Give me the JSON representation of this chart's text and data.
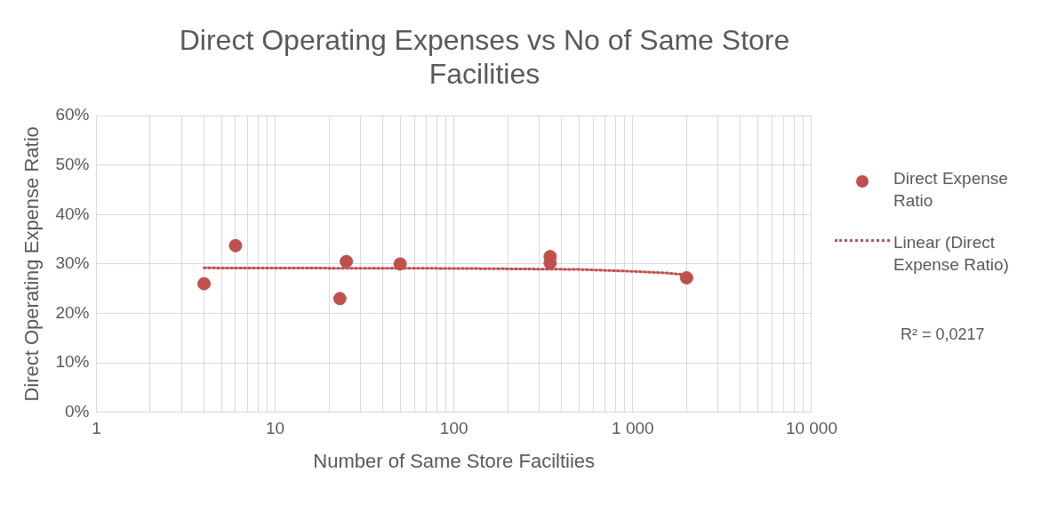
{
  "chart_data": {
    "type": "scatter",
    "title": "Direct Operating Expenses vs No of Same Store Facilities",
    "xlabel": "Number of Same Store Faciltiies",
    "ylabel": "Direct Operating Expense Ratio",
    "log": "x",
    "grid": true,
    "legend": "right",
    "xlim": [
      1,
      10000
    ],
    "xticks": [
      1,
      {
        "value": 2,
        "label": null
      },
      {
        "value": 3,
        "label": null
      },
      {
        "value": 4,
        "label": null
      },
      {
        "value": 5,
        "label": null
      },
      {
        "value": 6,
        "label": null
      },
      {
        "value": 7,
        "label": null
      },
      {
        "value": 8,
        "label": null
      },
      {
        "value": 9,
        "label": null
      },
      10,
      {
        "value": 20,
        "label": null
      },
      {
        "value": 30,
        "label": null
      },
      {
        "value": 40,
        "label": null
      },
      {
        "value": 50,
        "label": null
      },
      {
        "value": 60,
        "label": null
      },
      {
        "value": 70,
        "label": null
      },
      {
        "value": 80,
        "label": null
      },
      {
        "value": 90,
        "label": null
      },
      100,
      {
        "value": 200,
        "label": null
      },
      {
        "value": 300,
        "label": null
      },
      {
        "value": 400,
        "label": null
      },
      {
        "value": 500,
        "label": null
      },
      {
        "value": 600,
        "label": null
      },
      {
        "value": 700,
        "label": null
      },
      {
        "value": 800,
        "label": null
      },
      {
        "value": 900,
        "label": null
      },
      {
        "value": 1000,
        "label": "1 000"
      },
      {
        "value": 2000,
        "label": null
      },
      {
        "value": 3000,
        "label": null
      },
      {
        "value": 4000,
        "label": null
      },
      {
        "value": 5000,
        "label": null
      },
      {
        "value": 6000,
        "label": null
      },
      {
        "value": 7000,
        "label": null
      },
      {
        "value": 8000,
        "label": null
      },
      {
        "value": 9000,
        "label": null
      },
      {
        "value": 10000,
        "label": "10 000"
      }
    ],
    "ylim": [
      0,
      60
    ],
    "yticks": [
      {
        "value": 0,
        "label": "0%"
      },
      {
        "value": 10,
        "label": "10%"
      },
      {
        "value": 20,
        "label": "20%"
      },
      {
        "value": 30,
        "label": "30%"
      },
      {
        "value": 40,
        "label": "40%"
      },
      {
        "value": 50,
        "label": "50%"
      },
      {
        "value": 60,
        "label": "60%"
      }
    ],
    "series": [
      {
        "name": "Direct Expense Ratio",
        "type": "scatter",
        "color": "#c0504d",
        "marker": "circle",
        "x": [
          4,
          6,
          23,
          25,
          50,
          345,
          345,
          2000
        ],
        "values": [
          26,
          33.7,
          23,
          30.5,
          30,
          31.5,
          30.2,
          27.2
        ]
      },
      {
        "name": "Linear (Direct Expense Ratio)",
        "type": "line",
        "color": "#c0504d",
        "marker": "none",
        "line_style": "dotted",
        "x": [
          4,
          100,
          500,
          1000,
          1500,
          2000
        ],
        "values": [
          29.2,
          29.1,
          28.9,
          28.5,
          28.2,
          27.8
        ]
      }
    ],
    "annotations": [
      "R² = 0,0217"
    ]
  }
}
